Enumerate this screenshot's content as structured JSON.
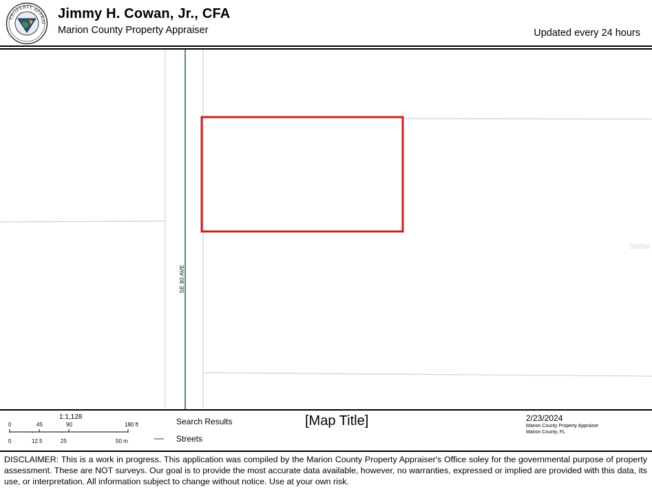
{
  "header": {
    "title": "Jimmy H. Cowan, Jr., CFA",
    "subtitle": "Marion County Property Appraiser",
    "updated": "Updated every 24 hours",
    "seal_text": "PROPERTY APPRAISER"
  },
  "map": {
    "street_label": "SE 80 AVE",
    "watermark": "Stellar",
    "parcel_outline_color": "#cc1f1f",
    "street_color": "#7fa8a3",
    "parcel_line_color": "#c9d6d6"
  },
  "legend": {
    "scale_ratio": "1:1,128",
    "feet_labels": [
      "0",
      "45",
      "90",
      "180 ft"
    ],
    "meter_labels": [
      "0",
      "12.5",
      "25",
      "50 m"
    ],
    "items": [
      {
        "label": "Search Results"
      },
      {
        "label": "Streets"
      }
    ],
    "map_title": "[Map Title]",
    "date": "2/23/2024",
    "source_line1": "Marion County Property Appraiser",
    "source_line2": "Marion County, FL"
  },
  "disclaimer": "DISCLAIMER: This is a work in progress. This application was compiled by the Marion County Property Appraiser's Office soley for the governmental purpose of property assessment. These are NOT surveys. Our goal is to provide the most accurate data available, however, no warranties, expressed or implied are provided with this data, its use, or interpretation. All information subject to change without notice. Use at your own risk."
}
